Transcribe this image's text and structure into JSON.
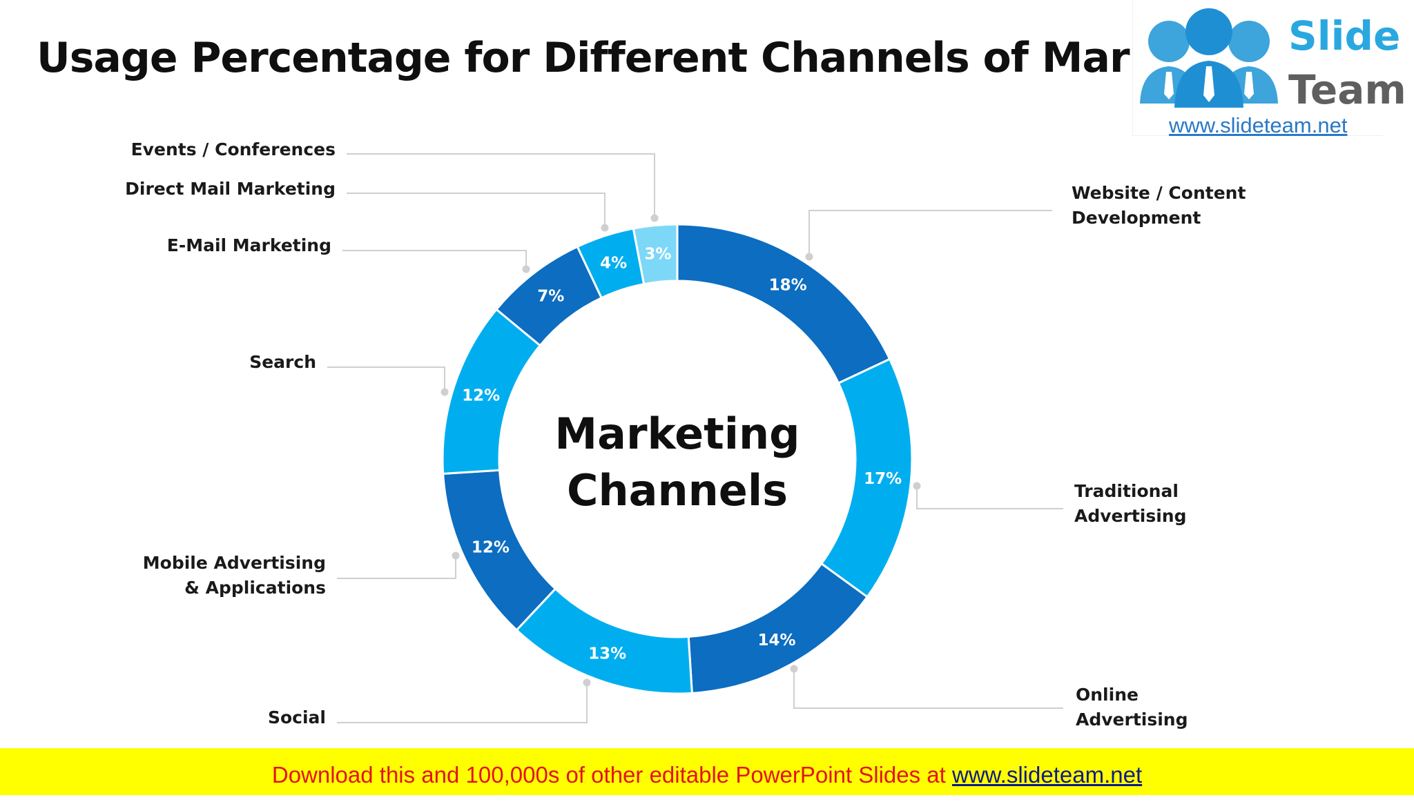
{
  "slide": {
    "title": "Usage Percentage for Different Channels of Marketing",
    "center_label": [
      "Marketing",
      "Channels"
    ]
  },
  "logo": {
    "word1": "Slide",
    "word2": "Team",
    "url": "www.slideteam.net",
    "icon": "people-group-icon"
  },
  "banner": {
    "text": "Download this and 100,000s of other editable PowerPoint Slides at ",
    "link": "www.slideteam.net"
  },
  "chart_data": {
    "type": "pie",
    "donut": true,
    "title": "Usage Percentage for Different Channels of Marketing",
    "center_text": "Marketing Channels",
    "slices": [
      {
        "label": "Website / Content Development",
        "lines": [
          "Website / Content",
          "Development"
        ],
        "value": 18,
        "display": "18%",
        "color": "#0c6dc1"
      },
      {
        "label": "Traditional Advertising",
        "lines": [
          "Traditional",
          "Advertising"
        ],
        "value": 17,
        "display": "17%",
        "color": "#00aeef"
      },
      {
        "label": "Online Advertising",
        "lines": [
          "Online",
          "Advertising"
        ],
        "value": 14,
        "display": "14%",
        "color": "#0c6dc1"
      },
      {
        "label": "Social",
        "lines": [
          "Social"
        ],
        "value": 13,
        "display": "13%",
        "color": "#00aeef"
      },
      {
        "label": "Mobile Advertising & Applications",
        "lines": [
          "Mobile Advertising",
          "& Applications"
        ],
        "value": 12,
        "display": "12%",
        "color": "#0c6dc1"
      },
      {
        "label": "Search",
        "lines": [
          "Search"
        ],
        "value": 12,
        "display": "12%",
        "color": "#00aeef"
      },
      {
        "label": "E-Mail Marketing",
        "lines": [
          "E-Mail Marketing"
        ],
        "value": 7,
        "display": "7%",
        "color": "#0c6dc1"
      },
      {
        "label": "Direct Mail Marketing",
        "lines": [
          "Direct Mail Marketing"
        ],
        "value": 4,
        "display": "4%",
        "color": "#00aeef"
      },
      {
        "label": "Events / Conferences",
        "lines": [
          "Events / Conferences"
        ],
        "value": 3,
        "display": "3%",
        "color": "#7dd8f8"
      }
    ],
    "leader_color": "#cfcfcf"
  }
}
